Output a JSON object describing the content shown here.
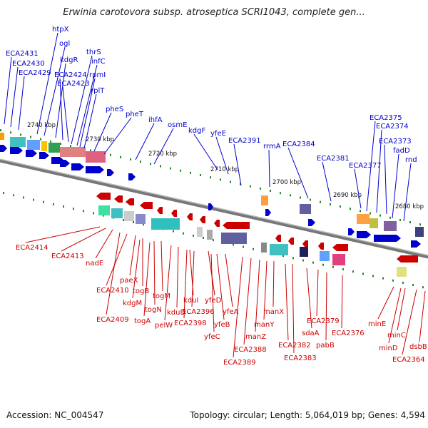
{
  "title": "Erwinia carotovora subsp. atroseptica SCRI1043, complete gen...",
  "footer": {
    "accession": "Accession: NC_004547",
    "summary": "Topology: circular; Length: 5,064,019 bp; Genes: 4,594"
  },
  "colors": {
    "top_strand": "#0000cc",
    "bottom_strand": "#cc0000",
    "backbone": "#888888",
    "tick": "#228822"
  },
  "scale_labels": [
    "2740 kbp",
    "2730 kbp",
    "2720 kbp",
    "2710 kbp",
    "2700 kbp",
    "2690 kbp",
    "2680 kbp"
  ],
  "top_genes": [
    "ECA2431",
    "ECA2430",
    "ECA2429",
    "htpX",
    "ogl",
    "kdgR",
    "ECA2424",
    "ECA2423",
    "thrS",
    "infC",
    "rpmI",
    "rplT",
    "pheS",
    "pheT",
    "ihfA",
    "osmE",
    "kdgF",
    "yfeE",
    "ECA2391",
    "rrmA",
    "ECA2384",
    "ECA2381",
    "ECA2377",
    "ECA2375",
    "ECA2374",
    "ECA2373",
    "fadD",
    "rnd"
  ],
  "bottom_genes": [
    "ECA2414",
    "ECA2413",
    "nadE",
    "paeX",
    "ECA2410",
    "togB",
    "kdgM",
    "togM",
    "togN",
    "ECA2409",
    "togA",
    "pelW",
    "kduD",
    "kduI",
    "yfeD",
    "ECA2396",
    "ECA2398",
    "yfeA",
    "yfeB",
    "yfeC",
    "manX",
    "manY",
    "manZ",
    "ECA2388",
    "ECA2389",
    "ECA2383",
    "ECA2382",
    "sdaA",
    "ECA2379",
    "pabB",
    "ECA2376",
    "minE",
    "minC",
    "minD",
    "dsbB",
    "ECA2364"
  ]
}
